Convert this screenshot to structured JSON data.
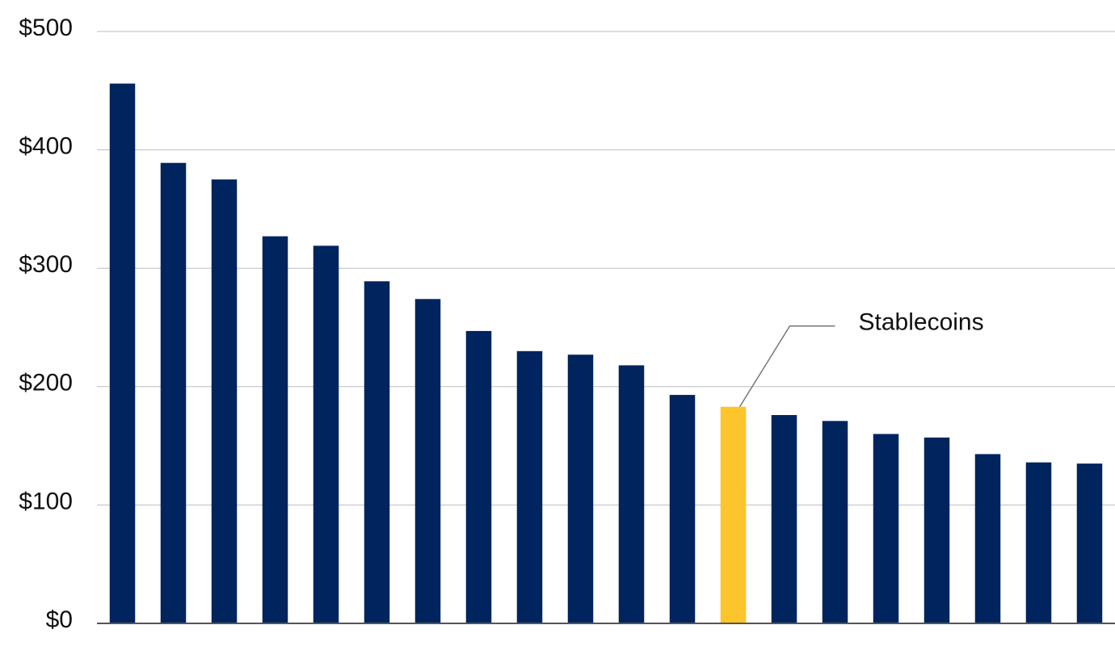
{
  "chart_data": {
    "type": "bar",
    "categories": [
      null,
      null,
      null,
      null,
      null,
      null,
      null,
      null,
      null,
      null,
      null,
      null,
      null,
      null,
      null,
      null,
      null,
      null,
      null,
      null
    ],
    "values": [
      456,
      389,
      375,
      327,
      319,
      289,
      274,
      247,
      230,
      227,
      218,
      193,
      183,
      176,
      171,
      160,
      157,
      143,
      136,
      135
    ],
    "colors": [
      "#00245d",
      "#00245d",
      "#00245d",
      "#00245d",
      "#00245d",
      "#00245d",
      "#00245d",
      "#00245d",
      "#00245d",
      "#00245d",
      "#00245d",
      "#00245d",
      "#fcc52c",
      "#00245d",
      "#00245d",
      "#00245d",
      "#00245d",
      "#00245d",
      "#00245d",
      "#00245d"
    ],
    "annotation": "Stablecoins",
    "ylim": [
      0,
      500
    ],
    "yticks": [
      {
        "value": 0,
        "label": "$0"
      },
      {
        "value": 100,
        "label": "$100"
      },
      {
        "value": 200,
        "label": "$200"
      },
      {
        "value": 300,
        "label": "$300"
      },
      {
        "value": 400,
        "label": "$400"
      },
      {
        "value": 500,
        "label": "$500"
      }
    ],
    "grid": true
  }
}
